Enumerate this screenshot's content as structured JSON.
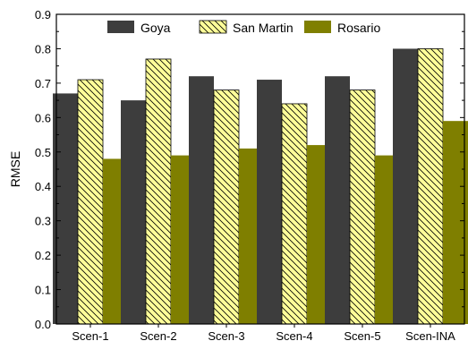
{
  "chart_data": {
    "type": "bar",
    "categories": [
      "Scen-1",
      "Scen-2",
      "Scen-3",
      "Scen-4",
      "Scen-5",
      "Scen-INA"
    ],
    "series": [
      {
        "name": "Goya",
        "values": [
          0.67,
          0.65,
          0.72,
          0.71,
          0.72,
          0.8
        ],
        "color": "#3d3d3d",
        "pattern": "solid"
      },
      {
        "name": "San Martin",
        "values": [
          0.71,
          0.77,
          0.68,
          0.64,
          0.68,
          0.8
        ],
        "color": "#ffff99",
        "pattern": "diagonal-hatch"
      },
      {
        "name": "Rosario",
        "values": [
          0.48,
          0.49,
          0.51,
          0.52,
          0.49,
          0.59
        ],
        "color": "#7f7f00",
        "pattern": "solid"
      }
    ],
    "title": "",
    "xlabel": "",
    "ylabel": "RMSE",
    "ylim": [
      0,
      0.9
    ],
    "yticks": [
      "0.0",
      "0.1",
      "0.2",
      "0.3",
      "0.4",
      "0.5",
      "0.6",
      "0.7",
      "0.8",
      "0.9"
    ],
    "grid": false,
    "legend_position": "top"
  }
}
